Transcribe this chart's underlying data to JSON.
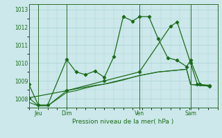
{
  "background_color": "#cce8ea",
  "grid_color": "#a8d0d4",
  "line_color": "#1a6b1a",
  "xlabel": "Pression niveau de la mer( hPa )",
  "ylim": [
    1007.5,
    1013.3
  ],
  "yticks": [
    1008,
    1009,
    1010,
    1011,
    1012,
    1013
  ],
  "xlim": [
    0,
    14
  ],
  "day_labels": [
    "Jeu",
    "Dim",
    "Ven",
    "Sam"
  ],
  "day_positions": [
    0.7,
    2.8,
    8.2,
    12.0
  ],
  "vline_positions": [
    0.7,
    2.8,
    8.2,
    12.0
  ],
  "s1_x": [
    0.0,
    0.7,
    1.4,
    2.8,
    3.5,
    4.2,
    4.9,
    5.6,
    6.3,
    7.0,
    7.7,
    8.2,
    8.9,
    9.6,
    10.3,
    11.0,
    11.7,
    12.0,
    12.7,
    13.4
  ],
  "s1_y": [
    1008.8,
    1007.65,
    1007.65,
    1010.2,
    1009.5,
    1009.35,
    1009.55,
    1009.2,
    1010.35,
    1012.6,
    1012.35,
    1012.6,
    1012.6,
    1011.35,
    1010.3,
    1010.15,
    1009.8,
    1010.15,
    1008.8,
    1008.75
  ],
  "s2_x": [
    0.0,
    0.7,
    1.4,
    2.8,
    3.5,
    4.2,
    4.9,
    5.6,
    6.3,
    7.0,
    7.7,
    8.2,
    8.9,
    9.6,
    10.3,
    11.0,
    11.7,
    12.0,
    12.7,
    13.4
  ],
  "s2_y": [
    1008.05,
    1007.6,
    1007.6,
    1008.45,
    1008.55,
    1008.65,
    1008.75,
    1008.82,
    1008.92,
    1009.05,
    1009.2,
    1009.3,
    1009.4,
    1009.5,
    1009.55,
    1009.6,
    1009.65,
    1008.8,
    1008.75,
    1008.7
  ],
  "s3_x": [
    0.0,
    0.7,
    1.4,
    2.8,
    3.5,
    4.2,
    4.9,
    5.6,
    6.3,
    7.0,
    7.7,
    8.2,
    8.9,
    9.6,
    10.3,
    11.0,
    11.7,
    12.0,
    12.7,
    13.4
  ],
  "s3_y": [
    1007.8,
    1007.6,
    1007.6,
    1008.35,
    1008.45,
    1008.6,
    1008.72,
    1008.82,
    1008.95,
    1009.08,
    1009.2,
    1009.3,
    1009.4,
    1009.5,
    1009.55,
    1009.6,
    1009.65,
    1008.8,
    1008.75,
    1008.7
  ],
  "s4_x": [
    0.0,
    2.8,
    5.6,
    8.2,
    10.5,
    11.0,
    12.0,
    12.5,
    13.4
  ],
  "s4_y": [
    1008.05,
    1008.45,
    1009.0,
    1009.5,
    1012.05,
    1012.3,
    1010.0,
    1008.8,
    1008.7
  ]
}
